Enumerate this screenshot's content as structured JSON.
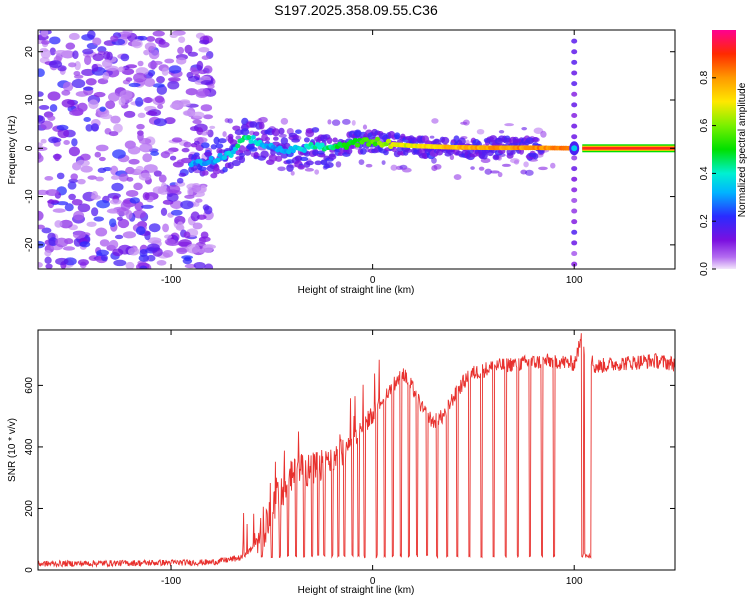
{
  "figure": {
    "title": "S197.2025.358.09.55.C36"
  },
  "colors": {
    "snr_line": "#e8312e",
    "spectral_ridge": "#ff2a1a",
    "scatter": "#7a1ee0",
    "axis": "#000000"
  },
  "chart_data": [
    {
      "id": "spectrogram",
      "type": "heatmap",
      "title": "",
      "xlabel": "Height of straight line (km)",
      "ylabel": "Frequency (Hz)",
      "xlim": [
        -166,
        150
      ],
      "ylim": [
        -25,
        24.5
      ],
      "xticks": [
        -100,
        0,
        100
      ],
      "yticks": [
        -20,
        -10,
        0,
        10,
        20
      ],
      "colorbar": {
        "label": "Normalized spectral amplitude",
        "range": [
          0,
          1
        ],
        "ticks": [
          0.0,
          0.2,
          0.4,
          0.6,
          0.8
        ],
        "colormap": "rainbow"
      },
      "ridge": {
        "description_points_x": [
          -90,
          -80,
          -70,
          -65,
          -60,
          -55,
          -50,
          -40,
          -30,
          -20,
          -10,
          0,
          10,
          20,
          40,
          60,
          80,
          100,
          150
        ],
        "description_points_y": [
          -3,
          -2.5,
          -1,
          1.5,
          2,
          1,
          0,
          -0.5,
          0.5,
          0,
          1,
          1.5,
          0.8,
          0.5,
          0.2,
          0.1,
          0.1,
          0,
          0
        ],
        "description_points_amp": [
          0.3,
          0.3,
          0.35,
          0.45,
          0.4,
          0.35,
          0.3,
          0.35,
          0.4,
          0.45,
          0.5,
          0.55,
          0.65,
          0.7,
          0.75,
          0.8,
          0.8,
          0.85,
          0.95
        ]
      },
      "noise_region_x": [
        -166,
        -90
      ]
    },
    {
      "id": "snr",
      "type": "line",
      "title": "",
      "xlabel": "Height of straight line (km)",
      "ylabel": "SNR (10 * v/v)",
      "xlim": [
        -166,
        150
      ],
      "ylim": [
        0,
        780
      ],
      "xticks": [
        -100,
        0,
        100
      ],
      "yticks": [
        0,
        200,
        400,
        600
      ],
      "series": [
        {
          "name": "SNR",
          "envelope_x": [
            -166,
            -80,
            -65,
            -60,
            -55,
            -50,
            -45,
            -40,
            -35,
            -30,
            -25,
            -20,
            -15,
            -10,
            -5,
            0,
            5,
            10,
            15,
            20,
            25,
            30,
            35,
            40,
            45,
            50,
            60,
            70,
            80,
            90,
            100,
            104,
            110,
            120,
            130,
            140,
            150
          ],
          "envelope_y": [
            20,
            25,
            40,
            70,
            120,
            180,
            260,
            300,
            330,
            320,
            340,
            360,
            390,
            420,
            460,
            500,
            560,
            600,
            640,
            590,
            520,
            480,
            500,
            560,
            610,
            640,
            660,
            670,
            675,
            680,
            670,
            760,
            660,
            670,
            675,
            680,
            670
          ],
          "dropout_x": [
            -55,
            -50,
            -46,
            -42,
            -38,
            -34,
            -30,
            -27,
            -24,
            -20,
            -17,
            -14,
            -10,
            -7,
            -4,
            2,
            6,
            10,
            14,
            18,
            22,
            27,
            32,
            37,
            42,
            48,
            54,
            60,
            66,
            72,
            78,
            84,
            90,
            104,
            106,
            108
          ],
          "dropout_min": 40
        }
      ]
    }
  ]
}
